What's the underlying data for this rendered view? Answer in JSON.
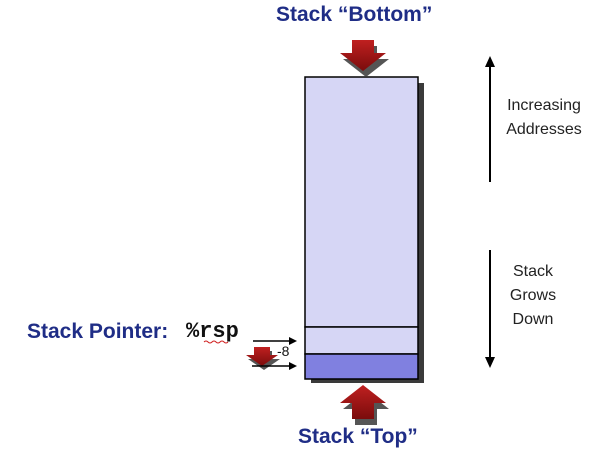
{
  "labels": {
    "stack_bottom": "Stack “Bottom”",
    "stack_top": "Stack “Top”",
    "stack_pointer": "Stack Pointer:",
    "register": "%rsp",
    "offset": "-8",
    "increasing_line1": "Increasing",
    "increasing_line2": "Addresses",
    "grows_line1": "Stack",
    "grows_line2": "Grows",
    "grows_line3": "Down"
  },
  "colors": {
    "title_blue": "#1f2d86",
    "arrow_red": "#9e1212",
    "stack_fill": "#d6d6f5",
    "new_slot_fill": "#8080e0",
    "shadow": "#3a3a3a"
  }
}
